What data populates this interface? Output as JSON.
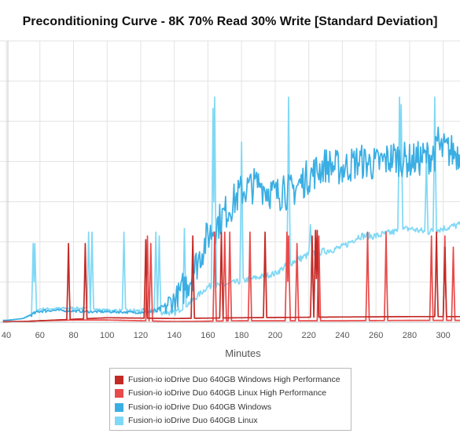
{
  "chart_data": {
    "type": "line",
    "title": "Preconditioning Curve - 8K 70% Read 30% Write [Standard Deviation]",
    "xlabel": "Minutes",
    "ylabel": "",
    "x_ticks": [
      40,
      60,
      80,
      100,
      120,
      140,
      160,
      180,
      200,
      220,
      240,
      260,
      280,
      300
    ],
    "xlim": [
      40,
      310
    ],
    "ylim": [
      0,
      7.5
    ],
    "grid": true,
    "legend_position": "bottom",
    "series": [
      {
        "name": "Fusion-io ioDrive Duo 640GB Windows High Performance",
        "color": "#c32a26",
        "baseline": [
          [
            40,
            0.02
          ],
          [
            50,
            0.02
          ],
          [
            60,
            0.04
          ],
          [
            80,
            0.08
          ],
          [
            100,
            0.12
          ],
          [
            140,
            0.1
          ],
          [
            180,
            0.12
          ],
          [
            240,
            0.14
          ],
          [
            280,
            0.15
          ],
          [
            310,
            0.15
          ]
        ],
        "spikes": [
          [
            77,
            2.1
          ],
          [
            87,
            2.1
          ],
          [
            123,
            2.2
          ],
          [
            151,
            2.3
          ],
          [
            168,
            2.4
          ],
          [
            194,
            2.4
          ],
          [
            222,
            2.3
          ],
          [
            224,
            2.45
          ],
          [
            225,
            2.45
          ],
          [
            296,
            2.4
          ],
          [
            301,
            2.0
          ]
        ]
      },
      {
        "name": "Fusion-io ioDrive Duo 640GB Linux High Performance",
        "color": "#e94a4a",
        "baseline": [
          [
            40,
            0.0
          ],
          [
            60,
            0.04
          ],
          [
            80,
            0.06
          ],
          [
            100,
            0.06
          ],
          [
            140,
            0.02
          ],
          [
            180,
            0.04
          ],
          [
            240,
            0.04
          ],
          [
            280,
            0.05
          ],
          [
            310,
            0.05
          ]
        ],
        "spikes": [
          [
            124,
            2.3
          ],
          [
            126,
            2.1
          ],
          [
            164,
            2.4
          ],
          [
            170,
            2.4
          ],
          [
            173,
            2.4
          ],
          [
            185,
            2.4
          ],
          [
            207,
            2.4
          ],
          [
            208,
            2.3
          ],
          [
            213,
            2.1
          ],
          [
            226,
            2.3
          ],
          [
            255,
            2.4
          ],
          [
            266,
            2.4
          ],
          [
            293,
            2.3
          ],
          [
            301,
            2.3
          ],
          [
            306,
            2.0
          ]
        ]
      },
      {
        "name": "Fusion-io ioDrive Duo 640GB Windows",
        "color": "#3aaee3",
        "baseline": [
          [
            40,
            0.05
          ],
          [
            50,
            0.1
          ],
          [
            60,
            0.3
          ],
          [
            70,
            0.32
          ],
          [
            80,
            0.3
          ],
          [
            90,
            0.28
          ],
          [
            100,
            0.28
          ],
          [
            110,
            0.27
          ],
          [
            120,
            0.26
          ],
          [
            130,
            0.3
          ],
          [
            140,
            0.6
          ],
          [
            150,
            1.2
          ],
          [
            160,
            2.3
          ],
          [
            170,
            2.9
          ],
          [
            180,
            3.5
          ],
          [
            190,
            3.7
          ],
          [
            200,
            3.4
          ],
          [
            210,
            3.5
          ],
          [
            220,
            3.9
          ],
          [
            230,
            4.2
          ],
          [
            240,
            4.1
          ],
          [
            250,
            4.3
          ],
          [
            260,
            4.2
          ],
          [
            270,
            4.4
          ],
          [
            280,
            4.3
          ],
          [
            290,
            4.4
          ],
          [
            300,
            4.6
          ],
          [
            310,
            4.5
          ]
        ],
        "noise": [
          0,
          0,
          0.03,
          0.02,
          0.02,
          0.02,
          0.02,
          0.02,
          0.02,
          0.05,
          0.2,
          0.3,
          0.3,
          0.3,
          0.3,
          0.3,
          0.3,
          0.3,
          0.3,
          0.3,
          0.3,
          0.3,
          0.3,
          0.3,
          0.3,
          0.3,
          0.3,
          0.3
        ],
        "spikes": [
          [
            191,
            3.5
          ],
          [
            201,
            2.6
          ],
          [
            205,
            3.9
          ],
          [
            297,
            5.2
          ]
        ]
      },
      {
        "name": "Fusion-io ioDrive Duo 640GB Linux",
        "color": "#7fd8f5",
        "baseline": [
          [
            40,
            0.05
          ],
          [
            50,
            0.1
          ],
          [
            60,
            0.35
          ],
          [
            80,
            0.38
          ],
          [
            100,
            0.32
          ],
          [
            120,
            0.3
          ],
          [
            140,
            0.25
          ],
          [
            150,
            0.55
          ],
          [
            160,
            0.95
          ],
          [
            170,
            1.0
          ],
          [
            180,
            1.1
          ],
          [
            190,
            1.2
          ],
          [
            200,
            1.3
          ],
          [
            210,
            1.6
          ],
          [
            220,
            1.8
          ],
          [
            230,
            1.9
          ],
          [
            240,
            2.0
          ],
          [
            250,
            2.3
          ],
          [
            260,
            2.3
          ],
          [
            270,
            2.4
          ],
          [
            280,
            2.5
          ],
          [
            290,
            2.4
          ],
          [
            300,
            2.5
          ],
          [
            310,
            2.6
          ]
        ],
        "noise": [
          0,
          0,
          0.02,
          0.02,
          0.02,
          0.02,
          0.02,
          0.03,
          0.04,
          0.05,
          0.05,
          0.05,
          0.05,
          0.05,
          0.05,
          0.05,
          0.05,
          0.06,
          0.06,
          0.06,
          0.06,
          0.06,
          0.06,
          0.06
        ],
        "spikes": [
          [
            56,
            2.1
          ],
          [
            57,
            2.1
          ],
          [
            89,
            2.4
          ],
          [
            91,
            2.4
          ],
          [
            110,
            2.4
          ],
          [
            129,
            2.4
          ],
          [
            131,
            2.3
          ],
          [
            146,
            2.5
          ],
          [
            163,
            5.7
          ],
          [
            164,
            6.0
          ],
          [
            180,
            4.8
          ],
          [
            208,
            6.0
          ],
          [
            221,
            2.6
          ],
          [
            274,
            6.0
          ],
          [
            275,
            5.8
          ],
          [
            290,
            4.4
          ],
          [
            295,
            6.0
          ],
          [
            300,
            2.3
          ]
        ]
      }
    ]
  }
}
